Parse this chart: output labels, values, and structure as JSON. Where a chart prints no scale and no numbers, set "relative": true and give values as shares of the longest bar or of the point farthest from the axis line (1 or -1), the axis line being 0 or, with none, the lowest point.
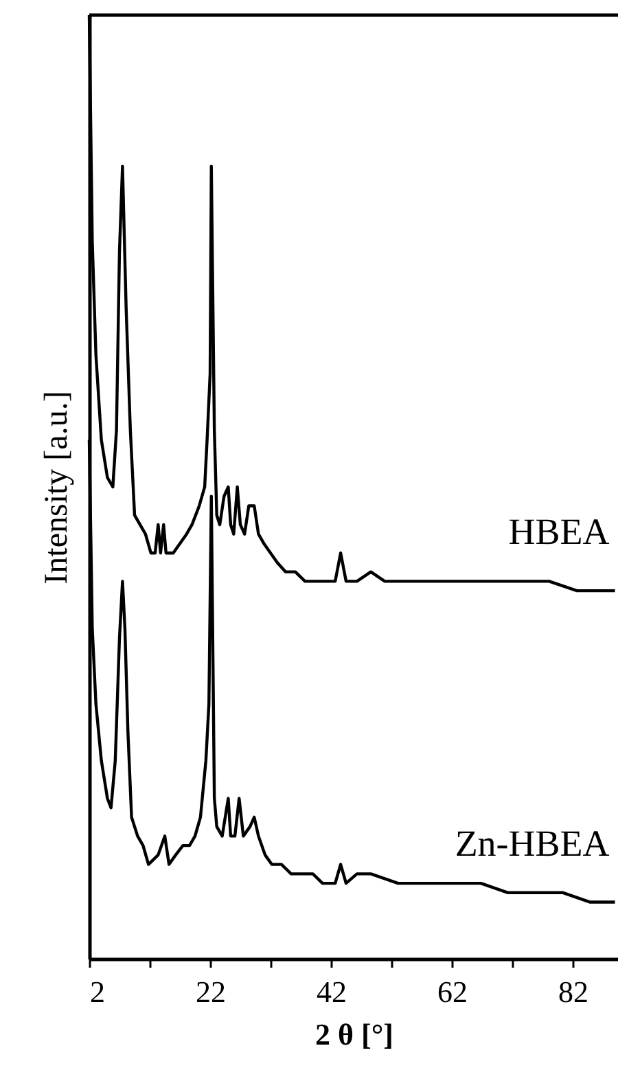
{
  "chart_data": {
    "type": "line",
    "relative": true,
    "xlabel": "2 θ [°]",
    "ylabel": "Intensity [a.u.]",
    "xlim": [
      2,
      89.5
    ],
    "xticks": [
      2,
      {
        "value": 12,
        "label": null
      },
      22,
      {
        "value": 32,
        "label": null
      },
      42,
      {
        "value": 52,
        "label": null
      },
      62,
      {
        "value": 72,
        "label": null
      },
      82
    ],
    "grid": false,
    "marker": "none",
    "line_style": "solid",
    "series": [
      {
        "name": "HBEA",
        "color": "#000000",
        "x": [
          2.0,
          2.5,
          3.1,
          4.0,
          5.0,
          5.9,
          6.5,
          7.0,
          7.5,
          8.1,
          8.8,
          9.5,
          10.4,
          11.3,
          12.2,
          12.9,
          13.4,
          13.8,
          14.3,
          14.7,
          15.9,
          17.0,
          18.1,
          19.0,
          20.2,
          21.1,
          21.5,
          22.0,
          22.2,
          22.7,
          23.1,
          23.6,
          24.3,
          25.0,
          25.4,
          25.9,
          26.5,
          27.0,
          27.7,
          28.4,
          29.3,
          30.0,
          30.9,
          32.0,
          33.1,
          34.5,
          36.1,
          37.7,
          39.5,
          40.9,
          42.7,
          43.6,
          44.5,
          46.3,
          48.6,
          50.9,
          55.4,
          60.0,
          64.5,
          69.0,
          73.6,
          78.1,
          82.7,
          86.1,
          89.0
        ],
        "values": [
          1.0,
          0.76,
          0.64,
          0.55,
          0.51,
          0.5,
          0.56,
          0.75,
          0.84,
          0.69,
          0.56,
          0.47,
          0.46,
          0.45,
          0.43,
          0.43,
          0.46,
          0.43,
          0.46,
          0.43,
          0.43,
          0.44,
          0.45,
          0.46,
          0.48,
          0.5,
          0.55,
          0.62,
          0.84,
          0.56,
          0.47,
          0.46,
          0.49,
          0.5,
          0.46,
          0.45,
          0.5,
          0.46,
          0.45,
          0.48,
          0.48,
          0.45,
          0.44,
          0.43,
          0.42,
          0.41,
          0.41,
          0.4,
          0.4,
          0.4,
          0.4,
          0.43,
          0.4,
          0.4,
          0.41,
          0.4,
          0.4,
          0.4,
          0.4,
          0.4,
          0.4,
          0.4,
          0.39,
          0.39,
          0.39
        ]
      },
      {
        "name": "Zn-HBEA",
        "color": "#000000",
        "x": [
          2.0,
          2.5,
          3.1,
          4.0,
          5.0,
          5.6,
          6.3,
          7.0,
          7.5,
          7.9,
          8.4,
          9.0,
          10.0,
          10.9,
          11.8,
          13.4,
          14.5,
          15.2,
          16.3,
          17.5,
          18.6,
          19.5,
          20.4,
          21.3,
          21.8,
          22.2,
          22.7,
          23.1,
          24.0,
          25.0,
          25.4,
          26.1,
          26.8,
          27.5,
          28.6,
          29.3,
          30.0,
          31.1,
          32.2,
          33.8,
          35.4,
          37.2,
          39.0,
          40.6,
          42.7,
          43.6,
          44.5,
          46.3,
          48.6,
          53.1,
          57.7,
          62.2,
          66.8,
          71.3,
          75.9,
          80.4,
          84.9,
          89.0
        ],
        "values": [
          0.55,
          0.35,
          0.27,
          0.21,
          0.17,
          0.16,
          0.21,
          0.34,
          0.4,
          0.35,
          0.24,
          0.15,
          0.13,
          0.12,
          0.1,
          0.11,
          0.13,
          0.1,
          0.11,
          0.12,
          0.12,
          0.13,
          0.15,
          0.21,
          0.27,
          0.49,
          0.17,
          0.14,
          0.13,
          0.17,
          0.13,
          0.13,
          0.17,
          0.13,
          0.14,
          0.15,
          0.13,
          0.11,
          0.1,
          0.1,
          0.09,
          0.09,
          0.09,
          0.08,
          0.08,
          0.1,
          0.08,
          0.09,
          0.09,
          0.08,
          0.08,
          0.08,
          0.08,
          0.07,
          0.07,
          0.07,
          0.06,
          0.06
        ]
      }
    ]
  }
}
